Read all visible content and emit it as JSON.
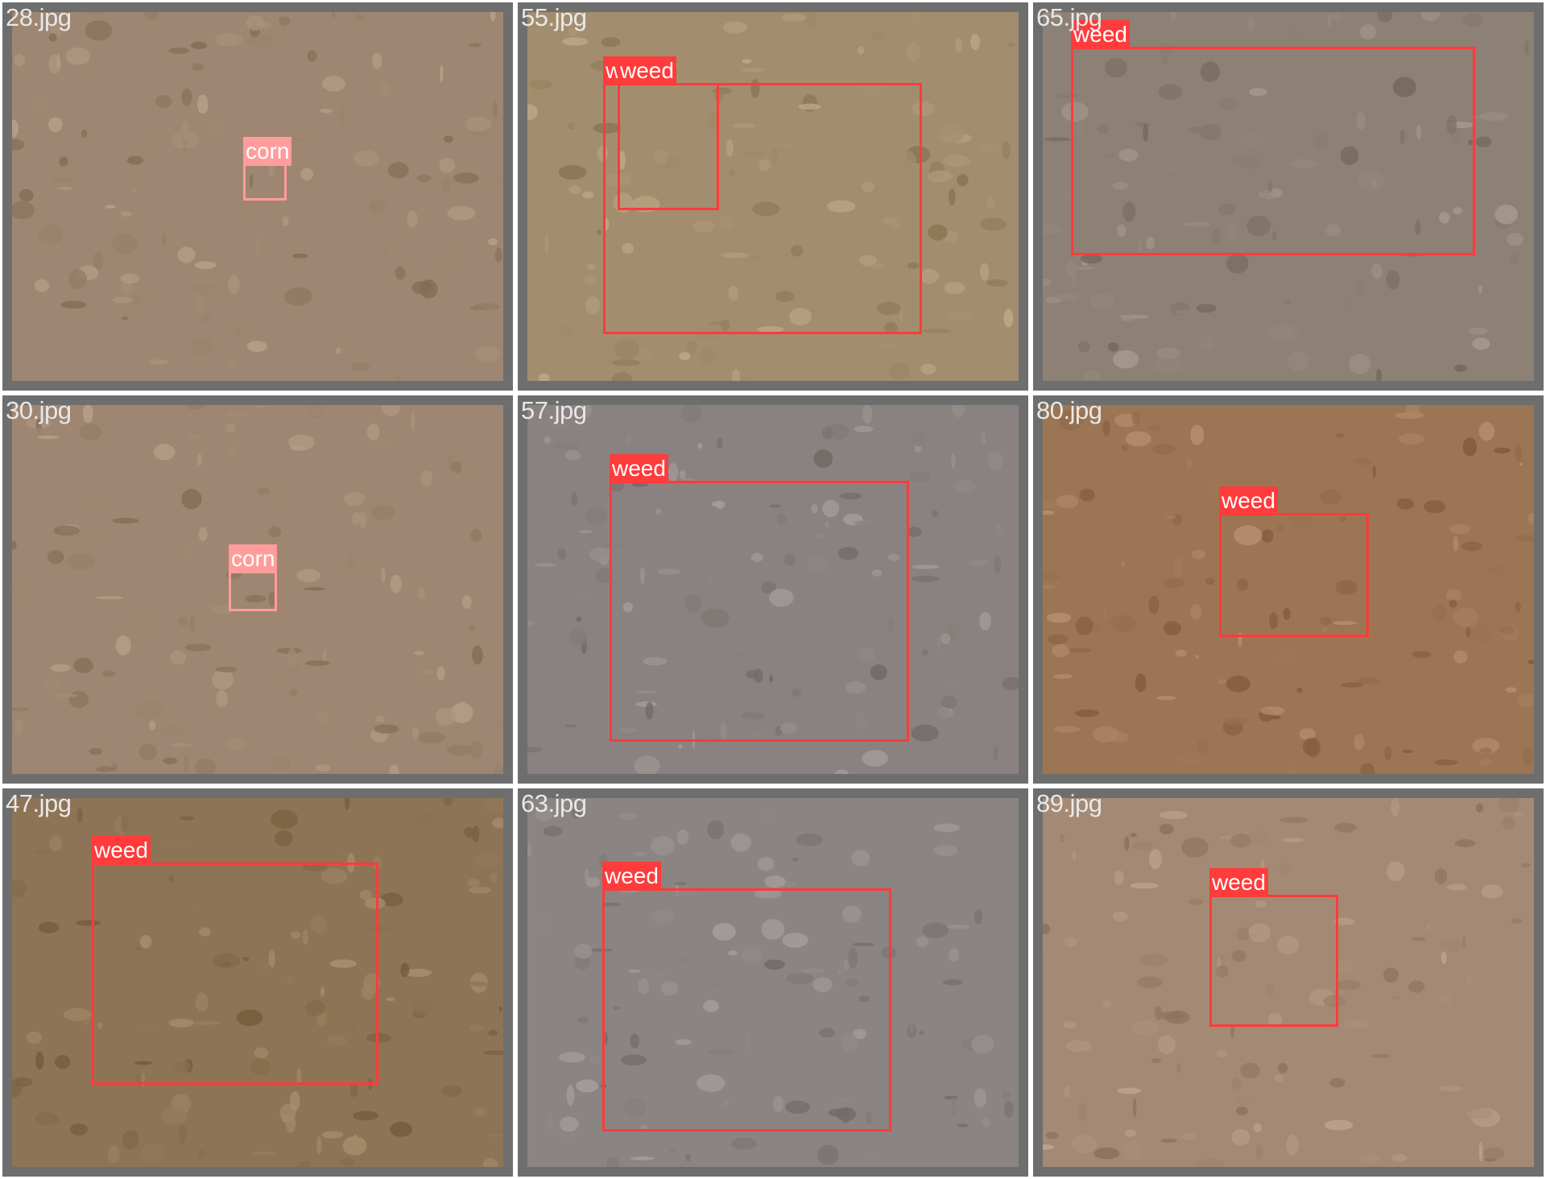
{
  "colors": {
    "weed_box": "#ff3b3b",
    "corn_box": "#ff9c9c",
    "tile_frame": "#6e6e6e",
    "filename_text": "#e8e8e8"
  },
  "tiles": [
    {
      "filename": "28.jpg",
      "soil_color": "#9e8672",
      "detections": [
        {
          "label": "corn",
          "color": "#ff9c9c",
          "icon": "corn-seedling-icon"
        }
      ]
    },
    {
      "filename": "55.jpg",
      "soil_color": "#a28e6e",
      "detections": [
        {
          "label": "weed",
          "color": "#ff3b3b",
          "icon": "weed-mask-icon"
        },
        {
          "label": "weed",
          "color": "#ff3b3b",
          "icon": "weed-mask-icon"
        }
      ]
    },
    {
      "filename": "65.jpg",
      "soil_color": "#8d8075",
      "detections": [
        {
          "label": "weed",
          "color": "#ff3b3b",
          "icon": "weed-mask-icon"
        }
      ]
    },
    {
      "filename": "30.jpg",
      "soil_color": "#9e8672",
      "detections": [
        {
          "label": "corn",
          "color": "#ff9c9c",
          "icon": "corn-seedling-icon"
        }
      ]
    },
    {
      "filename": "57.jpg",
      "soil_color": "#8a8280",
      "detections": [
        {
          "label": "weed",
          "color": "#ff3b3b",
          "icon": "weed-mask-icon"
        }
      ]
    },
    {
      "filename": "80.jpg",
      "soil_color": "#9c7654",
      "detections": [
        {
          "label": "weed",
          "color": "#ff3b3b",
          "icon": "weed-mask-icon"
        }
      ]
    },
    {
      "filename": "47.jpg",
      "soil_color": "#8e7456",
      "detections": [
        {
          "label": "weed",
          "color": "#ff3b3b",
          "icon": "weed-mask-icon"
        }
      ]
    },
    {
      "filename": "63.jpg",
      "soil_color": "#8a8482",
      "detections": [
        {
          "label": "weed",
          "color": "#ff3b3b",
          "icon": "weed-mask-icon"
        }
      ]
    },
    {
      "filename": "89.jpg",
      "soil_color": "#a48a74",
      "detections": [
        {
          "label": "weed",
          "color": "#ff3b3b",
          "icon": "weed-mask-icon"
        }
      ]
    }
  ]
}
